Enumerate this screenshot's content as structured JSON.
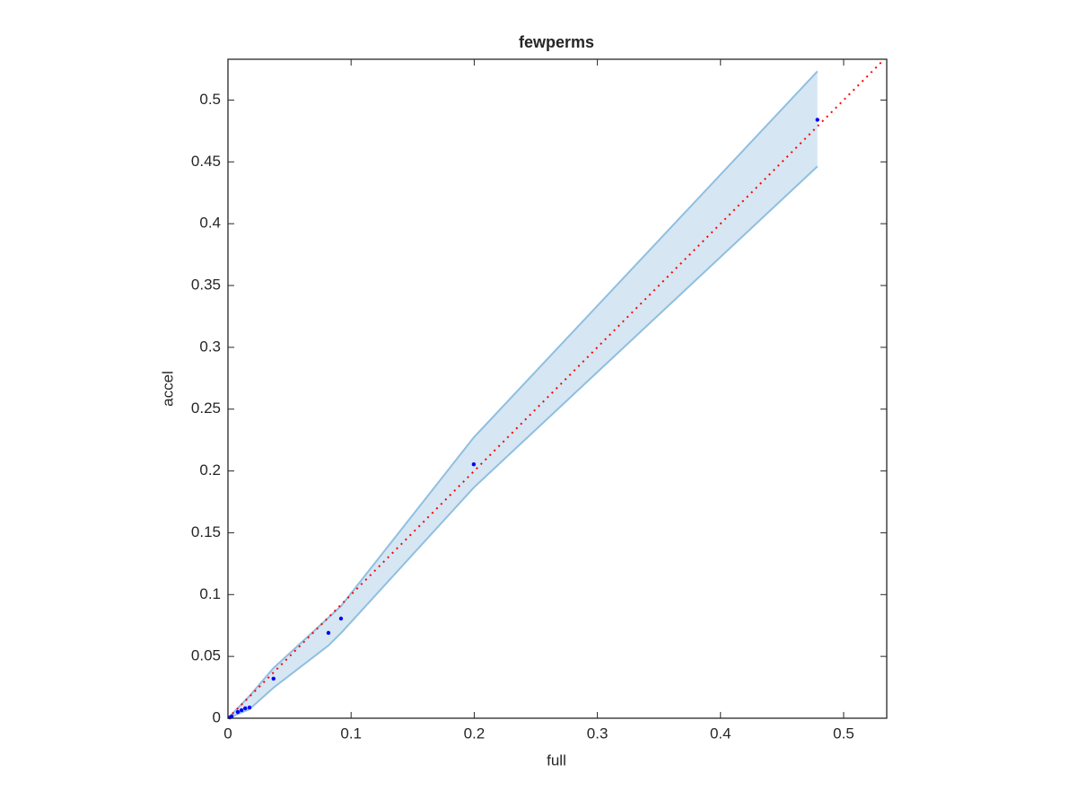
{
  "chart_data": {
    "type": "scatter",
    "title": "fewperms",
    "x_label": "full",
    "y_label": "accel",
    "x": [
      0.0015,
      0.003,
      0.008,
      0.011,
      0.014,
      0.0175,
      0.037,
      0.0816,
      0.0918,
      0.1996,
      0.4787
    ],
    "values": [
      0.0007,
      0.0015,
      0.005,
      0.0065,
      0.008,
      0.0087,
      0.032,
      0.069,
      0.0806,
      0.2054,
      0.484
    ],
    "color": "#0000ff",
    "band": {
      "x": [
        0,
        0.0175,
        0.037,
        0.0816,
        0.0918,
        0.1996,
        0.4787
      ],
      "upper": [
        0,
        0.018,
        0.0406,
        0.0813,
        0.0907,
        0.2271,
        0.5232
      ],
      "lower": [
        0,
        0.0073,
        0.0247,
        0.0588,
        0.0689,
        0.1865,
        0.4463
      ],
      "color": "#d6e6f3",
      "edge_color": "#8fbfe0"
    },
    "identity_line_color": "#ff0000",
    "xlim": [
      0,
      0.535
    ],
    "ylim": [
      0,
      0.533
    ],
    "xticks": [
      0,
      0.1,
      0.2,
      0.3,
      0.4,
      0.5
    ],
    "yticks": [
      0,
      0.05,
      0.1,
      0.15,
      0.2,
      0.25,
      0.3,
      0.35,
      0.4,
      0.45,
      0.5
    ]
  }
}
